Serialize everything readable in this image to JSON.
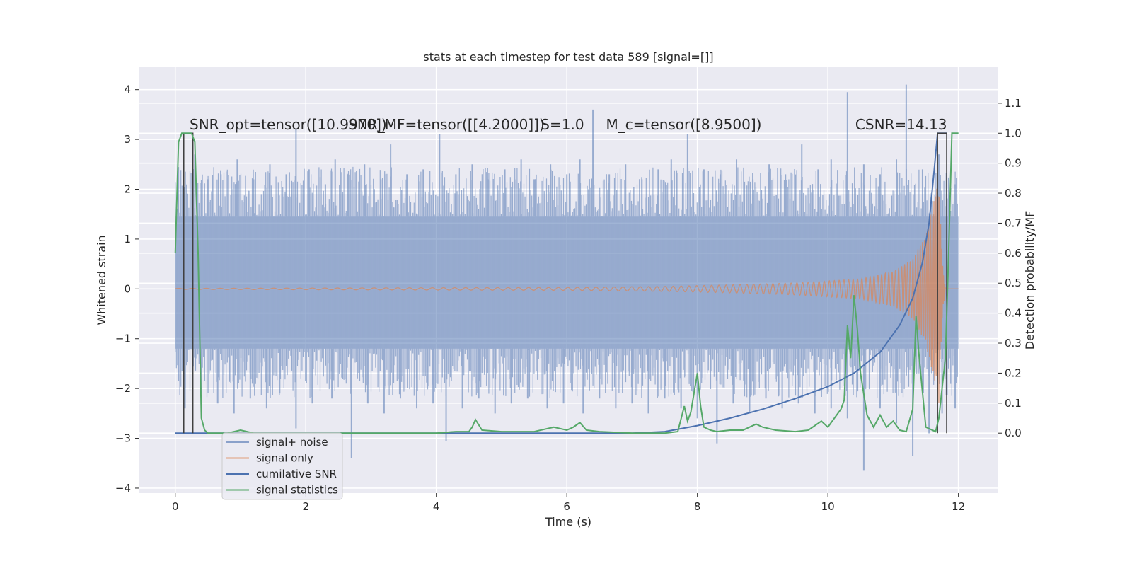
{
  "chart_data": {
    "type": "line",
    "title": "stats at each timestep for test data 589 [signal=[]]",
    "xlabel": "Time (s)",
    "ylabel_left": "Whitened strain",
    "ylabel_right": "Detection probability/MF",
    "xlim": [
      -0.55,
      12.6
    ],
    "ylim_left": [
      -4.1,
      4.45
    ],
    "ylim_right": [
      -0.2,
      1.22
    ],
    "x_ticks": [
      0,
      2,
      4,
      6,
      8,
      10,
      12
    ],
    "x_tick_labels": [
      "0",
      "2",
      "4",
      "6",
      "8",
      "10",
      "12"
    ],
    "y_left_ticks": [
      -4,
      -3,
      -2,
      -1,
      0,
      1,
      2,
      3,
      4
    ],
    "y_left_tick_labels": [
      "−4",
      "−3",
      "−2",
      "−1",
      "0",
      "1",
      "2",
      "3",
      "4"
    ],
    "y_right_ticks": [
      0.0,
      0.1,
      0.2,
      0.3,
      0.4,
      0.5,
      0.6,
      0.7,
      0.8,
      0.9,
      1.0,
      1.1
    ],
    "y_right_tick_labels": [
      "0.0",
      "0.1",
      "0.2",
      "0.3",
      "0.4",
      "0.5",
      "0.6",
      "0.7",
      "0.8",
      "0.9",
      "1.0",
      "1.1"
    ],
    "grid": true,
    "legend_position": "lower-left",
    "annotations": [
      {
        "text": "SNR_opt=tensor([10.9970])",
        "x": 0.22,
        "y": 3.3
      },
      {
        "text": "SNR_MF=tensor([[4.2000]])",
        "x": 2.65,
        "y": 3.3
      },
      {
        "text": "S=1.0",
        "x": 5.6,
        "y": 3.3
      },
      {
        "text": "M_c=tensor([8.9500])",
        "x": 6.6,
        "y": 3.3
      },
      {
        "text": "CSNR=14.13",
        "x": 10.42,
        "y": 3.3
      }
    ],
    "series": [
      {
        "name": "signal+ noise",
        "axis": "left",
        "color": "#4c72b0",
        "alpha": 0.5,
        "band": {
          "x": [
            0,
            12
          ],
          "low": -1.2,
          "high": 1.45
        },
        "spikes_up": [
          [
            0.3,
            2.7
          ],
          [
            0.5,
            2.2
          ],
          [
            0.7,
            2.3
          ],
          [
            0.95,
            2.6
          ],
          [
            1.2,
            2.2
          ],
          [
            1.45,
            2.5
          ],
          [
            1.7,
            2.3
          ],
          [
            1.85,
            3.2
          ],
          [
            2.05,
            2.4
          ],
          [
            2.3,
            2.1
          ],
          [
            2.45,
            2.6
          ],
          [
            2.65,
            2.3
          ],
          [
            2.9,
            2.5
          ],
          [
            3.15,
            2.2
          ],
          [
            3.3,
            2.9
          ],
          [
            3.55,
            2.3
          ],
          [
            3.8,
            2.4
          ],
          [
            4.05,
            3.1
          ],
          [
            4.3,
            2.3
          ],
          [
            4.55,
            2.5
          ],
          [
            4.8,
            2.2
          ],
          [
            5.05,
            2.4
          ],
          [
            5.3,
            2.6
          ],
          [
            5.5,
            2.2
          ],
          [
            5.75,
            2.5
          ],
          [
            6.0,
            2.3
          ],
          [
            6.2,
            2.6
          ],
          [
            6.4,
            3.6
          ],
          [
            6.65,
            2.3
          ],
          [
            6.9,
            2.5
          ],
          [
            7.15,
            2.2
          ],
          [
            7.4,
            2.4
          ],
          [
            7.6,
            2.6
          ],
          [
            7.85,
            3.1
          ],
          [
            8.1,
            2.4
          ],
          [
            8.35,
            2.3
          ],
          [
            8.6,
            2.6
          ],
          [
            8.85,
            2.2
          ],
          [
            9.1,
            2.5
          ],
          [
            9.35,
            2.3
          ],
          [
            9.6,
            2.9
          ],
          [
            9.85,
            2.4
          ],
          [
            10.05,
            2.6
          ],
          [
            10.3,
            3.95
          ],
          [
            10.55,
            2.5
          ],
          [
            10.8,
            2.3
          ],
          [
            11.05,
            2.6
          ],
          [
            11.2,
            4.1
          ],
          [
            11.45,
            2.4
          ],
          [
            11.7,
            2.7
          ],
          [
            11.95,
            2.1
          ]
        ],
        "spikes_down": [
          [
            0.15,
            -2.4
          ],
          [
            0.4,
            -2.1
          ],
          [
            0.65,
            -2.3
          ],
          [
            0.9,
            -2.5
          ],
          [
            1.15,
            -2.2
          ],
          [
            1.4,
            -2.4
          ],
          [
            1.6,
            -2.1
          ],
          [
            1.85,
            -2.8
          ],
          [
            2.1,
            -2.3
          ],
          [
            2.4,
            -2.2
          ],
          [
            2.7,
            -3.4
          ],
          [
            2.95,
            -2.3
          ],
          [
            3.2,
            -2.5
          ],
          [
            3.45,
            -2.2
          ],
          [
            3.7,
            -2.4
          ],
          [
            3.95,
            -2.3
          ],
          [
            4.15,
            -3.05
          ],
          [
            4.4,
            -2.4
          ],
          [
            4.65,
            -2.2
          ],
          [
            4.9,
            -2.5
          ],
          [
            5.15,
            -2.3
          ],
          [
            5.4,
            -2.2
          ],
          [
            5.7,
            -2.4
          ],
          [
            5.95,
            -2.3
          ],
          [
            6.25,
            -2.5
          ],
          [
            6.5,
            -2.2
          ],
          [
            6.75,
            -2.4
          ],
          [
            7.0,
            -2.3
          ],
          [
            7.25,
            -2.5
          ],
          [
            7.5,
            -2.2
          ],
          [
            7.75,
            -2.4
          ],
          [
            8.0,
            -2.6
          ],
          [
            8.3,
            -3.1
          ],
          [
            8.55,
            -2.3
          ],
          [
            8.8,
            -2.5
          ],
          [
            9.05,
            -2.2
          ],
          [
            9.3,
            -2.4
          ],
          [
            9.55,
            -2.3
          ],
          [
            9.8,
            -2.5
          ],
          [
            10.05,
            -2.4
          ],
          [
            10.3,
            -2.6
          ],
          [
            10.55,
            -3.65
          ],
          [
            10.8,
            -2.4
          ],
          [
            11.05,
            -2.7
          ],
          [
            11.3,
            -3.35
          ],
          [
            11.55,
            -2.9
          ],
          [
            11.75,
            -2.5
          ],
          [
            11.95,
            -2.4
          ]
        ]
      },
      {
        "name": "signal only",
        "axis": "left",
        "color": "#dd8452",
        "description": "chirp growing in amplitude and frequency",
        "envelope": [
          [
            0,
            0.01
          ],
          [
            6.0,
            0.03
          ],
          [
            7.5,
            0.05
          ],
          [
            8.5,
            0.08
          ],
          [
            9.5,
            0.12
          ],
          [
            10.5,
            0.2
          ],
          [
            11.0,
            0.35
          ],
          [
            11.3,
            0.6
          ],
          [
            11.5,
            1.1
          ],
          [
            11.62,
            1.8
          ],
          [
            11.7,
            2.3
          ],
          [
            11.75,
            0.6
          ],
          [
            11.8,
            0.0
          ],
          [
            12.0,
            0.0
          ]
        ]
      },
      {
        "name": "cumilative SNR",
        "axis": "right",
        "color": "#4c72b0",
        "x": [
          0.0,
          7.0,
          7.5,
          8.0,
          8.5,
          9.0,
          9.5,
          10.0,
          10.4,
          10.8,
          11.1,
          11.3,
          11.45,
          11.55,
          11.63,
          11.68,
          11.82
        ],
        "values": [
          0.0,
          0.0,
          0.005,
          0.025,
          0.05,
          0.08,
          0.115,
          0.155,
          0.2,
          0.27,
          0.36,
          0.45,
          0.57,
          0.7,
          0.88,
          1.0,
          1.0
        ]
      },
      {
        "name": "signal statistics",
        "axis": "right",
        "color": "#55a868",
        "x": [
          0.0,
          0.05,
          0.1,
          0.15,
          0.2,
          0.25,
          0.3,
          0.35,
          0.4,
          0.45,
          0.5,
          0.6,
          0.8,
          1.0,
          1.2,
          1.5,
          2.0,
          3.0,
          4.0,
          4.3,
          4.5,
          4.55,
          4.6,
          4.7,
          5.0,
          5.5,
          5.8,
          6.0,
          6.1,
          6.2,
          6.3,
          6.5,
          7.0,
          7.5,
          7.7,
          7.8,
          7.85,
          7.9,
          8.0,
          8.05,
          8.1,
          8.2,
          8.3,
          8.5,
          8.7,
          8.9,
          9.0,
          9.2,
          9.5,
          9.7,
          9.9,
          10.0,
          10.1,
          10.2,
          10.25,
          10.3,
          10.35,
          10.4,
          10.45,
          10.5,
          10.6,
          10.7,
          10.8,
          10.9,
          11.0,
          11.1,
          11.2,
          11.3,
          11.35,
          11.4,
          11.5,
          11.6,
          11.65,
          11.7,
          11.8,
          11.85,
          11.9,
          12.0
        ],
        "values": [
          0.6,
          0.97,
          1.0,
          1.0,
          1.0,
          1.0,
          0.97,
          0.6,
          0.05,
          0.01,
          0.0,
          0.0,
          0.0,
          0.01,
          0.0,
          0.0,
          0.0,
          0.0,
          0.0,
          0.005,
          0.005,
          0.02,
          0.045,
          0.01,
          0.005,
          0.005,
          0.02,
          0.01,
          0.02,
          0.035,
          0.01,
          0.005,
          0.0,
          0.0,
          0.005,
          0.09,
          0.04,
          0.07,
          0.2,
          0.09,
          0.02,
          0.01,
          0.005,
          0.01,
          0.01,
          0.03,
          0.02,
          0.01,
          0.005,
          0.01,
          0.04,
          0.02,
          0.05,
          0.08,
          0.11,
          0.36,
          0.25,
          0.46,
          0.35,
          0.2,
          0.06,
          0.02,
          0.06,
          0.02,
          0.04,
          0.01,
          0.005,
          0.08,
          0.39,
          0.25,
          0.02,
          0.01,
          0.005,
          0.05,
          0.25,
          0.6,
          1.0,
          1.0
        ]
      },
      {
        "name": "",
        "axis": "right",
        "color": "#404040",
        "description": "dark step traces at the start and end (unlabelled)",
        "segments": [
          [
            [
              0.13,
              0.0
            ],
            [
              0.13,
              1.0
            ],
            [
              0.27,
              1.0
            ],
            [
              0.27,
              0.0
            ]
          ],
          [
            [
              11.68,
              0.0
            ],
            [
              11.68,
              1.0
            ],
            [
              11.82,
              1.0
            ],
            [
              11.82,
              0.0
            ]
          ]
        ]
      }
    ]
  }
}
